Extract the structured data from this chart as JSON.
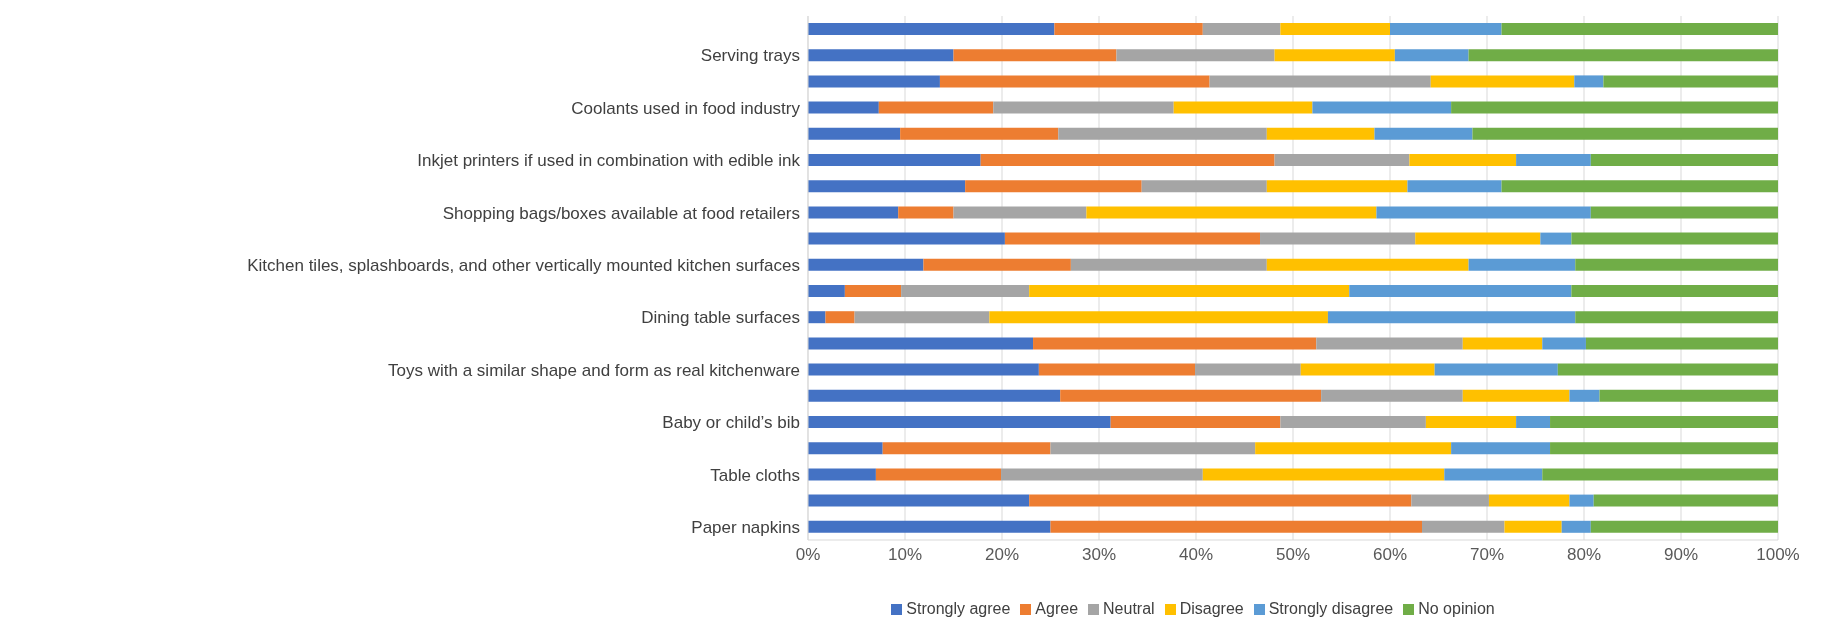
{
  "chart_data": {
    "type": "bar",
    "orientation": "horizontal",
    "stacked": true,
    "categories": [
      null,
      "Serving trays",
      null,
      "Coolants used in food industry",
      null,
      "Inkjet printers if used in combination with edible ink",
      null,
      "Shopping bags/boxes available at food retailers",
      null,
      "Kitchen tiles, splashboards, and other vertically mounted kitchen surfaces",
      null,
      "Dining table surfaces",
      null,
      "Toys with a similar shape and form as real kitchenware",
      null,
      "Baby or child’s bib",
      null,
      "Table cloths",
      null,
      "Paper napkins"
    ],
    "series": [
      {
        "name": "Strongly agree",
        "color": "#4472c4",
        "values": [
          25.4,
          15,
          13.6,
          7.3,
          9.5,
          17.8,
          16.2,
          9.3,
          20.3,
          11.9,
          3.8,
          1.8,
          23.2,
          23.8,
          26,
          31.2,
          7.7,
          7,
          22.8,
          25
        ]
      },
      {
        "name": "Agree",
        "color": "#ed7d31",
        "values": [
          15.3,
          16.8,
          27.8,
          11.8,
          16.3,
          30.3,
          18.2,
          5.7,
          26.3,
          15.2,
          5.8,
          3,
          29.2,
          16.1,
          26.9,
          17.5,
          17.3,
          12.9,
          39.4,
          38.3
        ]
      },
      {
        "name": "Neutral",
        "color": "#a5a5a5",
        "values": [
          8,
          16.3,
          22.8,
          18.6,
          21.5,
          13.9,
          12.9,
          13.7,
          16,
          20.2,
          13.2,
          13.9,
          15.1,
          10.9,
          14.6,
          15,
          21.1,
          20.8,
          8,
          8.5
        ]
      },
      {
        "name": "Disagree",
        "color": "#ffc000",
        "values": [
          11.3,
          12.4,
          14.8,
          14.3,
          11.1,
          11,
          14.5,
          29.9,
          12.9,
          20.8,
          33,
          34.9,
          8.2,
          13.8,
          11,
          9.3,
          20.2,
          24.9,
          8.3,
          5.9
        ]
      },
      {
        "name": "Strongly disagree",
        "color": "#5b9bd5",
        "values": [
          11.5,
          7.6,
          3,
          14.3,
          10.1,
          7.7,
          9.7,
          22.1,
          3.2,
          11,
          22.9,
          25.5,
          4.5,
          12.7,
          3.1,
          3.5,
          10.2,
          10.1,
          2.5,
          3
        ]
      },
      {
        "name": "No opinion",
        "color": "#70ad47",
        "values": [
          28.5,
          31.9,
          18,
          33.7,
          31.5,
          19.3,
          28.5,
          19.3,
          21.3,
          20.9,
          21.3,
          20.9,
          19.8,
          22.7,
          18.4,
          23.5,
          23.5,
          24.3,
          19,
          19.3
        ]
      }
    ],
    "xlim": [
      0,
      100
    ],
    "xticks": [
      {
        "value": 0,
        "label": "0%"
      },
      {
        "value": 10,
        "label": "10%"
      },
      {
        "value": 20,
        "label": "20%"
      },
      {
        "value": 30,
        "label": "30%"
      },
      {
        "value": 40,
        "label": "40%"
      },
      {
        "value": 50,
        "label": "50%"
      },
      {
        "value": 60,
        "label": "60%"
      },
      {
        "value": 70,
        "label": "70%"
      },
      {
        "value": 80,
        "label": "80%"
      },
      {
        "value": 90,
        "label": "90%"
      },
      {
        "value": 100,
        "label": "100%"
      }
    ],
    "grid": "x",
    "legend": "bottom"
  }
}
